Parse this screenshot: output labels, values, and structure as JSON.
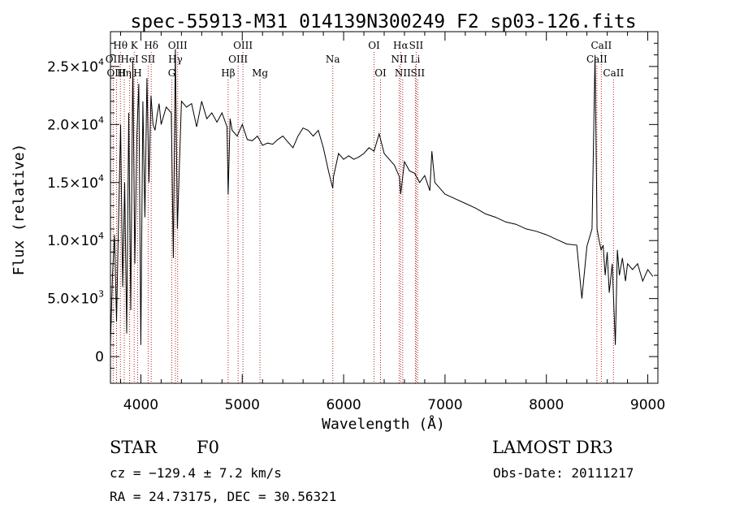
{
  "chart_data": {
    "type": "line",
    "title": "spec-55913-M31_014139N300249_F2_sp03-126.fits",
    "xlabel": "Wavelength (Å)",
    "ylabel": "Flux (relative)",
    "xlim": [
      3700,
      9100
    ],
    "ylim": [
      -2300,
      28000
    ],
    "x_ticks": [
      4000,
      5000,
      6000,
      7000,
      8000,
      9000
    ],
    "x_tick_labels": [
      "4000",
      "5000",
      "6000",
      "7000",
      "8000",
      "9000"
    ],
    "y_ticks": [
      0,
      5000,
      10000,
      15000,
      20000,
      25000
    ],
    "y_tick_labels": [
      {
        "mant": "0",
        "exp": ""
      },
      {
        "mant": "5.0×10",
        "exp": "3"
      },
      {
        "mant": "1.0×10",
        "exp": "4"
      },
      {
        "mant": "1.5×10",
        "exp": "4"
      },
      {
        "mant": "2.0×10",
        "exp": "4"
      },
      {
        "mant": "2.5×10",
        "exp": "4"
      }
    ],
    "grid": false,
    "series": [
      {
        "name": "spectrum",
        "x": [
          3700,
          3720,
          3740,
          3760,
          3780,
          3800,
          3820,
          3840,
          3860,
          3880,
          3900,
          3920,
          3940,
          3960,
          3980,
          4000,
          4020,
          4040,
          4060,
          4080,
          4100,
          4120,
          4140,
          4160,
          4180,
          4200,
          4250,
          4300,
          4320,
          4340,
          4360,
          4400,
          4450,
          4500,
          4550,
          4600,
          4650,
          4700,
          4750,
          4800,
          4850,
          4861,
          4880,
          4900,
          4950,
          5000,
          5050,
          5100,
          5150,
          5200,
          5250,
          5300,
          5350,
          5400,
          5450,
          5500,
          5550,
          5600,
          5650,
          5700,
          5750,
          5800,
          5850,
          5893,
          5900,
          5950,
          6000,
          6050,
          6100,
          6150,
          6200,
          6250,
          6300,
          6350,
          6400,
          6450,
          6500,
          6550,
          6563,
          6600,
          6650,
          6700,
          6750,
          6800,
          6850,
          6870,
          6900,
          6950,
          7000,
          7100,
          7200,
          7300,
          7400,
          7500,
          7600,
          7700,
          7800,
          7900,
          8000,
          8100,
          8200,
          8300,
          8350,
          8400,
          8450,
          8480,
          8500,
          8520,
          8540,
          8560,
          8580,
          8600,
          8620,
          8650,
          8680,
          8700,
          8720,
          8750,
          8780,
          8800,
          8850,
          8900,
          8950,
          9000,
          9050
        ],
        "y": [
          1000,
          7000,
          10500,
          3000,
          12000,
          20000,
          6000,
          15000,
          2000,
          21000,
          4000,
          25500,
          8000,
          19000,
          23500,
          1000,
          22000,
          12000,
          24000,
          15000,
          22500,
          20000,
          19500,
          20800,
          21800,
          20000,
          21500,
          21000,
          8500,
          26500,
          11000,
          22000,
          21500,
          21800,
          19800,
          22000,
          20500,
          21000,
          20200,
          21000,
          19800,
          14000,
          20500,
          19500,
          19000,
          20000,
          18700,
          18600,
          19000,
          18200,
          18400,
          18300,
          18700,
          19000,
          18500,
          18000,
          19000,
          19700,
          19500,
          19000,
          19500,
          18000,
          16000,
          14500,
          15500,
          17500,
          17000,
          17300,
          17000,
          17200,
          17500,
          18000,
          17700,
          19200,
          17500,
          17000,
          16500,
          15500,
          14000,
          16800,
          16000,
          15800,
          15000,
          15600,
          14300,
          17700,
          15000,
          14500,
          14000,
          13600,
          13200,
          12800,
          12300,
          12000,
          11600,
          11400,
          11000,
          10800,
          10500,
          10100,
          9700,
          9600,
          5000,
          9500,
          11000,
          26000,
          11000,
          10000,
          9200,
          9600,
          7000,
          9000,
          5500,
          8000,
          1000,
          9200,
          7000,
          8500,
          6500,
          8000,
          7500,
          8000,
          6500,
          7500,
          6900
        ]
      }
    ],
    "line_annotations": [
      {
        "label": "Hθ",
        "wl": 3798,
        "row": 0
      },
      {
        "label": "OII",
        "wl": 3727,
        "row": 1
      },
      {
        "label": "OIII",
        "wl": 3760,
        "row": 2
      },
      {
        "label": "Hη",
        "wl": 3836,
        "row": 2
      },
      {
        "label": "K",
        "wl": 3934,
        "row": 0
      },
      {
        "label": "HeI",
        "wl": 3889,
        "row": 1
      },
      {
        "label": "SII",
        "wl": 4072,
        "row": 1
      },
      {
        "label": "H",
        "wl": 3968,
        "row": 2
      },
      {
        "label": "Hδ",
        "wl": 4102,
        "row": 0
      },
      {
        "label": "OIII",
        "wl": 4363,
        "row": 0
      },
      {
        "label": "Hγ",
        "wl": 4341,
        "row": 1
      },
      {
        "label": "G",
        "wl": 4305,
        "row": 2
      },
      {
        "label": "OIII",
        "wl": 5007,
        "row": 0
      },
      {
        "label": "OIII",
        "wl": 4959,
        "row": 1
      },
      {
        "label": "Hβ",
        "wl": 4861,
        "row": 2
      },
      {
        "label": "Mg",
        "wl": 5175,
        "row": 2
      },
      {
        "label": "Na",
        "wl": 5893,
        "row": 1
      },
      {
        "label": "OI",
        "wl": 6300,
        "row": 0
      },
      {
        "label": "OI",
        "wl": 6364,
        "row": 2
      },
      {
        "label": "Hα",
        "wl": 6563,
        "row": 0
      },
      {
        "label": "SII",
        "wl": 6716,
        "row": 0
      },
      {
        "label": "NII",
        "wl": 6548,
        "row": 1
      },
      {
        "label": "Li",
        "wl": 6708,
        "row": 1
      },
      {
        "label": "NII",
        "wl": 6583,
        "row": 2
      },
      {
        "label": "SII",
        "wl": 6731,
        "row": 2
      },
      {
        "label": "CaII",
        "wl": 8542,
        "row": 0
      },
      {
        "label": "CaII",
        "wl": 8498,
        "row": 1
      },
      {
        "label": "CaII",
        "wl": 8662,
        "row": 2
      }
    ]
  },
  "info": {
    "class": "STAR",
    "subclass": "F0",
    "survey": "LAMOST DR3",
    "redshift": "cz = −129.4 ± 7.2 km/s",
    "obs_date": "Obs-Date: 20111217",
    "coords": "RA =  24.73175, DEC =  30.56321"
  },
  "colors": {
    "line": "#000000",
    "annotation": "#b22222",
    "axis": "#000000",
    "background": "#ffffff"
  }
}
